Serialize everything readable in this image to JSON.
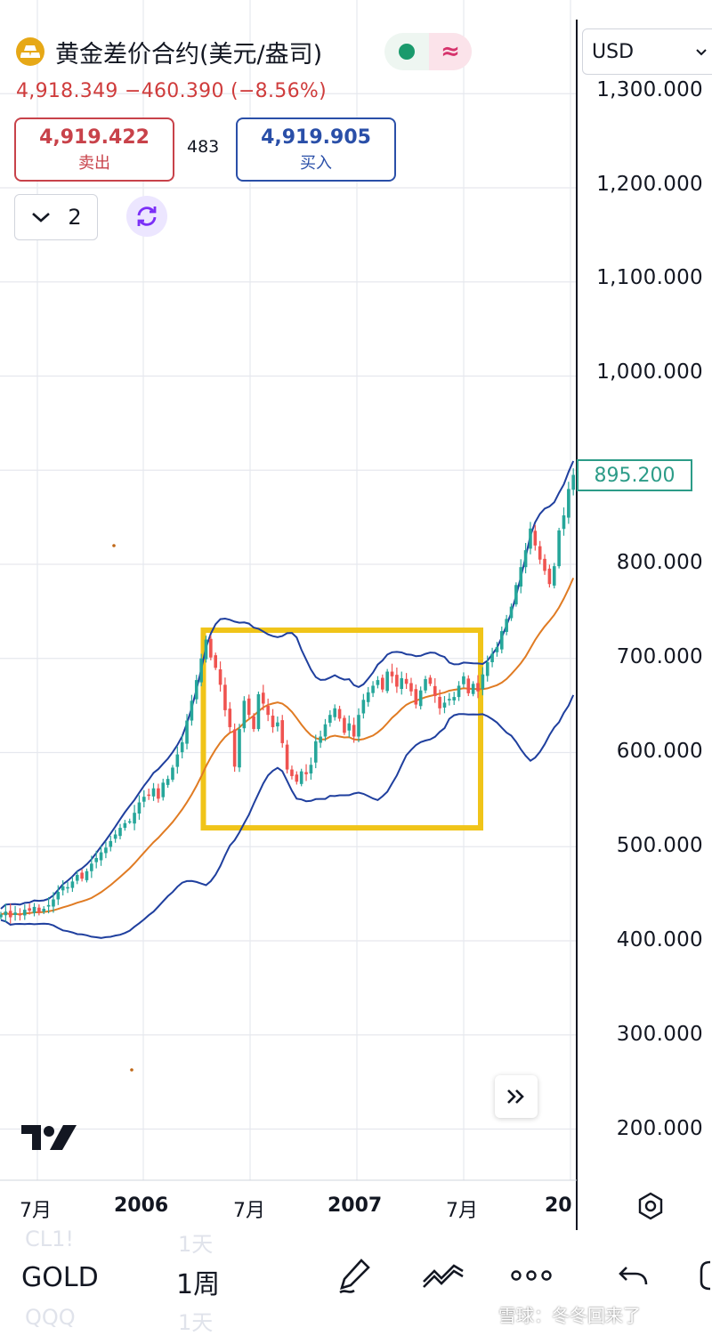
{
  "symbol": {
    "title": "黄金差价合约(美元/盎司)",
    "change_line": "4,918.349  −460.390 (−8.56%)",
    "sell_price": "4,919.422",
    "sell_label": "卖出",
    "spread": "483",
    "buy_price": "4,919.905",
    "buy_label": "买入",
    "indicator_count": "2",
    "status_symbol": "≈"
  },
  "currency": "USD",
  "current_price_tag": "895.200",
  "y_axis_labels": [
    "1,300.000",
    "1,200.000",
    "1,100.000",
    "1,000.000",
    "800.000",
    "700.000",
    "600.000",
    "500.000",
    "400.000",
    "300.000",
    "200.000"
  ],
  "x_axis_labels": [
    "7月",
    "2006",
    "7月",
    "2007",
    "7月",
    "20"
  ],
  "bottom_bar": {
    "symbol": "GOLD",
    "timeframe": "1周",
    "ghost_above_symbol": "CL1!",
    "ghost_above_tf": "1天",
    "ghost_below_symbol": "QQQ",
    "ghost_below_tf": "1天",
    "watermark": "雪球：冬冬回来了"
  },
  "colors": {
    "up": "#26a69a",
    "down": "#ef5350",
    "bands": "#1f3f9e",
    "ma": "#e07b23",
    "highlight": "#f0c419"
  },
  "chart_data": {
    "type": "candlestick",
    "title": "黄金差价合约(美元/盎司) 1周",
    "ylim": [
      150,
      1390
    ],
    "y_ticks": [
      200,
      300,
      400,
      500,
      600,
      700,
      800,
      1000,
      1100,
      1200,
      1300
    ],
    "x_ticks": [
      "7月",
      "2006",
      "7月",
      "2007",
      "7月",
      "20"
    ],
    "indicators": [
      "Bollinger Bands",
      "Moving Average"
    ],
    "last_price": 895.2,
    "highlight_range": {
      "start_week": 43,
      "end_week": 100,
      "low": 520,
      "high": 730
    },
    "series": [
      {
        "name": "close (weekly, approx)",
        "values": [
          428,
          431,
          425,
          430,
          427,
          433,
          432,
          436,
          430,
          434,
          438,
          444,
          452,
          458,
          457,
          463,
          470,
          466,
          474,
          482,
          488,
          494,
          499,
          506,
          513,
          520,
          525,
          527,
          536,
          547,
          553,
          555,
          562,
          551,
          568,
          572,
          584,
          598,
          611,
          634,
          655,
          677,
          700,
          720,
          701,
          690,
          672,
          645,
          627,
          585,
          625,
          655,
          640,
          625,
          662,
          652,
          640,
          627,
          632,
          610,
          582,
          575,
          569,
          580,
          577,
          587,
          612,
          617,
          630,
          640,
          647,
          636,
          621,
          631,
          617,
          640,
          656,
          664,
          671,
          677,
          667,
          686,
          681,
          670,
          679,
          673,
          665,
          651,
          666,
          678,
          673,
          660,
          647,
          653,
          657,
          659,
          671,
          681,
          663,
          673,
          665,
          683,
          696,
          705,
          712,
          729,
          742,
          755,
          778,
          797,
          815,
          838,
          820,
          805,
          793,
          779,
          798,
          836,
          852,
          880,
          895
        ]
      }
    ]
  }
}
